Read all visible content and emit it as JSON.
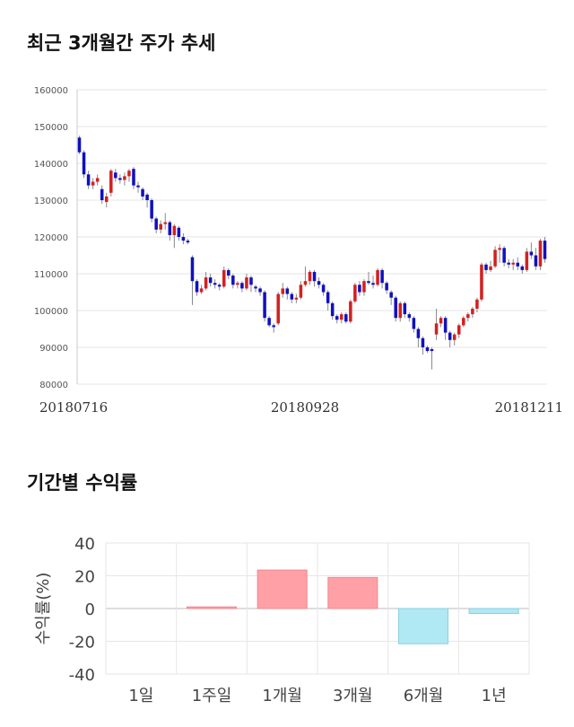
{
  "titles": {
    "price_trend": "최근 3개월간 주가 추세",
    "period_returns": "기간별 수익률"
  },
  "colors": {
    "up": "#d32020",
    "down": "#1010c0",
    "wick": "#888888",
    "positive_bar": "#ffa0a6",
    "negative_bar": "#b0e8f4",
    "grid": "#e6e6e6"
  },
  "chart_data": [
    {
      "type": "candlestick",
      "title": "최근 3개월간 주가 추세",
      "x_tick_labels": [
        "20180716",
        "20180928",
        "20181211"
      ],
      "y_tick_labels": [
        "80000",
        "90000",
        "100000",
        "110000",
        "120000",
        "130000",
        "140000",
        "150000",
        "160000"
      ],
      "ylim": [
        80000,
        160000
      ],
      "grid": true,
      "candles": [
        [
          147000,
          143000,
          147500,
          142500
        ],
        [
          143000,
          137000,
          143500,
          136000
        ],
        [
          137000,
          134000,
          138000,
          133000
        ],
        [
          134000,
          135000,
          136000,
          133000
        ],
        [
          135000,
          136000,
          137000,
          134000
        ],
        [
          133000,
          130000,
          134000,
          129000
        ],
        [
          129500,
          131000,
          132000,
          128000
        ],
        [
          132000,
          138000,
          138500,
          131000
        ],
        [
          137500,
          136000,
          138500,
          135000
        ],
        [
          136000,
          135500,
          137000,
          134500
        ],
        [
          135500,
          136500,
          137500,
          134000
        ],
        [
          136500,
          138000,
          138500,
          135000
        ],
        [
          138500,
          134000,
          139000,
          133000
        ],
        [
          134000,
          133500,
          135000,
          132000
        ],
        [
          133000,
          131000,
          133500,
          130000
        ],
        [
          131500,
          130000,
          132000,
          128000
        ],
        [
          130000,
          125000,
          130500,
          124000
        ],
        [
          125000,
          122000,
          125500,
          121000
        ],
        [
          122000,
          123500,
          124500,
          121000
        ],
        [
          123500,
          124000,
          126500,
          122000
        ],
        [
          124000,
          120500,
          124500,
          119000
        ],
        [
          120500,
          123000,
          123500,
          117000
        ],
        [
          122500,
          120000,
          123000,
          119000
        ],
        [
          120000,
          119000,
          121000,
          118000
        ],
        [
          119000,
          118500,
          119500,
          118000
        ],
        [
          114500,
          108000,
          115000,
          101500
        ],
        [
          108000,
          105000,
          108500,
          104000
        ],
        [
          105000,
          106000,
          107000,
          104500
        ],
        [
          106000,
          109000,
          110500,
          105500
        ],
        [
          109000,
          107500,
          110000,
          106500
        ],
        [
          107500,
          107000,
          108500,
          106000
        ],
        [
          107000,
          106500,
          107500,
          105500
        ],
        [
          106500,
          111000,
          112000,
          106000
        ],
        [
          111000,
          109500,
          111500,
          108500
        ],
        [
          109500,
          107000,
          110000,
          106000
        ],
        [
          107000,
          107500,
          108000,
          106000
        ],
        [
          107500,
          106000,
          108000,
          105000
        ],
        [
          106000,
          109000,
          110000,
          105500
        ],
        [
          109000,
          107000,
          109500,
          105000
        ],
        [
          106500,
          106000,
          107000,
          105000
        ],
        [
          106000,
          105000,
          106500,
          104000
        ],
        [
          105000,
          98000,
          105500,
          97000
        ],
        [
          98000,
          96000,
          98500,
          95500
        ],
        [
          96000,
          95500,
          96500,
          94000
        ],
        [
          96500,
          104500,
          105000,
          96000
        ],
        [
          104500,
          106000,
          107500,
          103500
        ],
        [
          106000,
          104500,
          106500,
          103000
        ],
        [
          104500,
          103000,
          105000,
          102000
        ],
        [
          103000,
          103500,
          104500,
          102000
        ],
        [
          103500,
          107000,
          108000,
          103000
        ],
        [
          107000,
          108000,
          112000,
          106500
        ],
        [
          108000,
          110500,
          111000,
          107000
        ],
        [
          110500,
          108000,
          111000,
          106500
        ],
        [
          108000,
          107000,
          109000,
          106000
        ],
        [
          107000,
          105000,
          107500,
          104000
        ],
        [
          105000,
          102000,
          105500,
          100000
        ],
        [
          102000,
          98500,
          102500,
          97500
        ],
        [
          98500,
          97500,
          99000,
          96500
        ],
        [
          97500,
          99000,
          99500,
          96500
        ],
        [
          99000,
          97000,
          99500,
          96500
        ],
        [
          97000,
          102500,
          103000,
          96500
        ],
        [
          102500,
          107000,
          107500,
          102000
        ],
        [
          107000,
          105000,
          108000,
          104000
        ],
        [
          105000,
          108000,
          108500,
          104000
        ],
        [
          108000,
          107500,
          110500,
          107000
        ],
        [
          107500,
          107000,
          109500,
          106000
        ],
        [
          107000,
          111000,
          111500,
          106500
        ],
        [
          111000,
          107500,
          111500,
          106000
        ],
        [
          107500,
          105500,
          108000,
          104500
        ],
        [
          105000,
          103500,
          105500,
          101500
        ],
        [
          103500,
          98000,
          104000,
          97000
        ],
        [
          98000,
          102000,
          102500,
          97000
        ],
        [
          102000,
          99000,
          102500,
          98000
        ],
        [
          99000,
          98000,
          99500,
          97000
        ],
        [
          98000,
          95000,
          98500,
          94000
        ],
        [
          95000,
          92500,
          95500,
          90000
        ],
        [
          92500,
          90000,
          93000,
          88000
        ],
        [
          90000,
          89000,
          90500,
          88500
        ],
        [
          89500,
          89000,
          90000,
          84000
        ],
        [
          93500,
          96500,
          100500,
          92000
        ],
        [
          96500,
          98000,
          98500,
          95500
        ],
        [
          98000,
          94000,
          98500,
          92000
        ],
        [
          94000,
          92000,
          94500,
          90000
        ],
        [
          92000,
          93500,
          94000,
          90500
        ],
        [
          93500,
          96000,
          96500,
          92500
        ],
        [
          96000,
          98000,
          98500,
          95500
        ],
        [
          98000,
          99000,
          99500,
          97000
        ],
        [
          99000,
          100500,
          101000,
          98000
        ],
        [
          100500,
          103000,
          103500,
          99500
        ],
        [
          103000,
          112500,
          113000,
          102500
        ],
        [
          112500,
          111000,
          113000,
          110000
        ],
        [
          111000,
          112000,
          113500,
          110500
        ],
        [
          112000,
          116500,
          117500,
          111500
        ],
        [
          116500,
          117000,
          118000,
          113000
        ],
        [
          117000,
          113000,
          117500,
          112000
        ],
        [
          113000,
          112500,
          114000,
          111500
        ],
        [
          112500,
          113000,
          114000,
          111000
        ],
        [
          113000,
          112000,
          114500,
          111000
        ],
        [
          112000,
          111000,
          112500,
          110000
        ],
        [
          111000,
          116000,
          117000,
          110500
        ],
        [
          116000,
          115000,
          118500,
          114000
        ],
        [
          115000,
          112000,
          117000,
          111000
        ],
        [
          112000,
          119000,
          119500,
          111000
        ],
        [
          119000,
          114000,
          120000,
          113000
        ]
      ]
    },
    {
      "type": "bar",
      "title": "기간별 수익률",
      "ylabel": "수익률(%)",
      "categories": [
        "1일",
        "1주일",
        "1개월",
        "3개월",
        "6개월",
        "1년"
      ],
      "values": [
        0,
        1,
        23.5,
        19,
        -21.5,
        -3
      ],
      "ylim": [
        -40,
        40
      ],
      "y_tick_labels": [
        "40",
        "20",
        "0",
        "-20",
        "-40"
      ],
      "grid": true
    }
  ]
}
